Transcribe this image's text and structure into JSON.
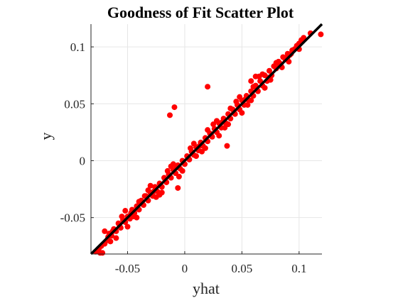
{
  "chart_data": {
    "type": "scatter",
    "title": "Goodness of Fit Scatter Plot",
    "xlabel": "yhat",
    "ylabel": "y",
    "xlim": [
      -0.082,
      0.12
    ],
    "ylim": [
      -0.082,
      0.12
    ],
    "x_ticks": [
      -0.05,
      0,
      0.05,
      0.1
    ],
    "x_tick_labels": [
      "-0.05",
      "0",
      "0.05",
      "0.1"
    ],
    "y_ticks": [
      -0.05,
      0,
      0.05,
      0.1
    ],
    "y_tick_labels": [
      "-0.05",
      "0",
      "0.05",
      "0.1"
    ],
    "grid": true,
    "reference_line": {
      "x": [
        -0.082,
        0.12
      ],
      "y": [
        -0.082,
        0.12
      ],
      "color": "#000000"
    },
    "marker_color": "#ff0000",
    "series": [
      {
        "points": [
          [
            -0.078,
            -0.08
          ],
          [
            -0.074,
            -0.081
          ],
          [
            -0.072,
            -0.081
          ],
          [
            -0.07,
            -0.073
          ],
          [
            -0.068,
            -0.07
          ],
          [
            -0.066,
            -0.064
          ],
          [
            -0.064,
            -0.066
          ],
          [
            -0.062,
            -0.06
          ],
          [
            -0.06,
            -0.062
          ],
          [
            -0.058,
            -0.055
          ],
          [
            -0.056,
            -0.059
          ],
          [
            -0.054,
            -0.052
          ],
          [
            -0.052,
            -0.054
          ],
          [
            -0.05,
            -0.049
          ],
          [
            -0.048,
            -0.051
          ],
          [
            -0.046,
            -0.043
          ],
          [
            -0.044,
            -0.046
          ],
          [
            -0.042,
            -0.04
          ],
          [
            -0.04,
            -0.043
          ],
          [
            -0.038,
            -0.035
          ],
          [
            -0.036,
            -0.039
          ],
          [
            -0.034,
            -0.031
          ],
          [
            -0.032,
            -0.035
          ],
          [
            -0.03,
            -0.028
          ],
          [
            -0.028,
            -0.031
          ],
          [
            -0.026,
            -0.023
          ],
          [
            -0.024,
            -0.027
          ],
          [
            -0.022,
            -0.02
          ],
          [
            -0.02,
            -0.023
          ],
          [
            -0.018,
            -0.015
          ],
          [
            -0.016,
            -0.019
          ],
          [
            -0.014,
            -0.012
          ],
          [
            -0.012,
            -0.015
          ],
          [
            -0.01,
            -0.008
          ],
          [
            -0.008,
            -0.011
          ],
          [
            -0.006,
            -0.004
          ],
          [
            -0.004,
            -0.007
          ],
          [
            -0.002,
            0.0
          ],
          [
            0.0,
            -0.003
          ],
          [
            0.002,
            0.004
          ],
          [
            0.004,
            0.001
          ],
          [
            0.006,
            0.008
          ],
          [
            0.008,
            0.005
          ],
          [
            0.01,
            0.012
          ],
          [
            0.012,
            0.009
          ],
          [
            0.014,
            0.016
          ],
          [
            0.016,
            0.013
          ],
          [
            0.018,
            0.02
          ],
          [
            0.02,
            0.017
          ],
          [
            0.022,
            0.024
          ],
          [
            0.024,
            0.021
          ],
          [
            0.026,
            0.028
          ],
          [
            0.028,
            0.025
          ],
          [
            0.03,
            0.033
          ],
          [
            0.032,
            0.029
          ],
          [
            0.034,
            0.037
          ],
          [
            0.036,
            0.033
          ],
          [
            0.038,
            0.041
          ],
          [
            0.04,
            0.037
          ],
          [
            0.042,
            0.045
          ],
          [
            0.044,
            0.041
          ],
          [
            0.046,
            0.049
          ],
          [
            0.048,
            0.045
          ],
          [
            0.05,
            0.053
          ],
          [
            0.052,
            0.049
          ],
          [
            0.054,
            0.057
          ],
          [
            0.056,
            0.053
          ],
          [
            0.058,
            0.061
          ],
          [
            0.06,
            0.057
          ],
          [
            0.062,
            0.066
          ],
          [
            0.064,
            0.061
          ],
          [
            0.066,
            0.07
          ],
          [
            0.068,
            0.066
          ],
          [
            0.07,
            0.075
          ],
          [
            0.072,
            0.07
          ],
          [
            0.074,
            0.079
          ],
          [
            0.076,
            0.075
          ],
          [
            0.078,
            0.083
          ],
          [
            0.08,
            0.081
          ],
          [
            0.082,
            0.087
          ],
          [
            0.084,
            0.085
          ],
          [
            0.086,
            0.091
          ],
          [
            0.088,
            0.089
          ],
          [
            0.09,
            0.094
          ],
          [
            0.092,
            0.093
          ],
          [
            0.094,
            0.097
          ],
          [
            0.096,
            0.098
          ],
          [
            0.098,
            0.101
          ],
          [
            0.1,
            0.103
          ],
          [
            0.102,
            0.106
          ],
          [
            0.104,
            0.108
          ],
          [
            0.119,
            0.111
          ],
          [
            -0.065,
            -0.071
          ],
          [
            -0.055,
            -0.049
          ],
          [
            -0.045,
            -0.049
          ],
          [
            -0.035,
            -0.031
          ],
          [
            -0.025,
            -0.032
          ],
          [
            -0.015,
            -0.009
          ],
          [
            -0.005,
            -0.014
          ],
          [
            0.005,
            0.011
          ],
          [
            0.015,
            0.008
          ],
          [
            0.025,
            0.032
          ],
          [
            0.035,
            0.029
          ],
          [
            0.045,
            0.052
          ],
          [
            0.055,
            0.049
          ],
          [
            0.065,
            0.074
          ],
          [
            0.075,
            0.071
          ],
          [
            -0.013,
            0.04
          ],
          [
            -0.009,
            0.047
          ],
          [
            0.02,
            0.065
          ],
          [
            0.037,
            0.013
          ],
          [
            -0.006,
            -0.024
          ],
          [
            0.058,
            0.07
          ],
          [
            0.062,
            0.074
          ],
          [
            0.085,
            0.082
          ],
          [
            0.091,
            0.087
          ],
          [
            0.068,
            0.076
          ],
          [
            -0.07,
            -0.062
          ],
          [
            -0.06,
            -0.068
          ],
          [
            -0.05,
            -0.058
          ],
          [
            -0.04,
            -0.036
          ],
          [
            -0.03,
            -0.022
          ],
          [
            -0.02,
            -0.028
          ],
          [
            -0.01,
            -0.003
          ],
          [
            0.01,
            0.004
          ],
          [
            0.02,
            0.027
          ],
          [
            0.03,
            0.022
          ],
          [
            0.04,
            0.046
          ],
          [
            0.05,
            0.042
          ],
          [
            0.06,
            0.065
          ],
          [
            0.07,
            0.064
          ],
          [
            0.08,
            0.086
          ],
          [
            0.09,
            0.091
          ],
          [
            0.1,
            0.098
          ],
          [
            0.11,
            0.112
          ],
          [
            -0.052,
            -0.044
          ],
          [
            -0.042,
            -0.05
          ],
          [
            -0.032,
            -0.026
          ],
          [
            -0.022,
            -0.03
          ],
          [
            -0.012,
            -0.005
          ],
          [
            -0.002,
            -0.009
          ],
          [
            0.008,
            0.015
          ],
          [
            0.018,
            0.011
          ],
          [
            0.028,
            0.035
          ],
          [
            0.038,
            0.032
          ],
          [
            0.048,
            0.056
          ],
          [
            0.058,
            0.053
          ],
          [
            -0.075,
            -0.077
          ],
          [
            -0.073,
            -0.075
          ],
          [
            -0.067,
            -0.067
          ],
          [
            -0.063,
            -0.062
          ],
          [
            -0.057,
            -0.057
          ],
          [
            -0.047,
            -0.046
          ],
          [
            -0.037,
            -0.038
          ],
          [
            -0.027,
            -0.027
          ],
          [
            -0.017,
            -0.017
          ],
          [
            -0.007,
            -0.006
          ],
          [
            0.003,
            0.003
          ],
          [
            0.013,
            0.013
          ],
          [
            0.023,
            0.023
          ],
          [
            0.033,
            0.034
          ],
          [
            0.043,
            0.043
          ],
          [
            0.053,
            0.054
          ],
          [
            0.063,
            0.063
          ],
          [
            0.073,
            0.073
          ],
          [
            0.083,
            0.084
          ],
          [
            0.093,
            0.094
          ]
        ]
      }
    ]
  }
}
